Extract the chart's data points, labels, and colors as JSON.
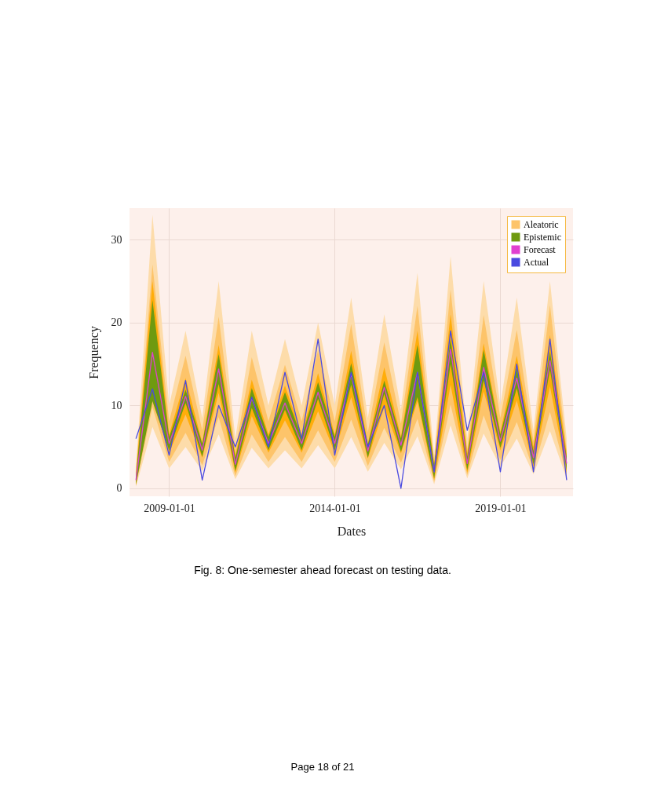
{
  "chart_data": {
    "type": "line",
    "xlabel": "Dates",
    "ylabel": "Frequency",
    "x": [
      "2008-01",
      "2008-07",
      "2009-01",
      "2009-07",
      "2010-01",
      "2010-07",
      "2011-01",
      "2011-07",
      "2012-01",
      "2012-07",
      "2013-01",
      "2013-07",
      "2014-01",
      "2014-07",
      "2015-01",
      "2015-07",
      "2016-01",
      "2016-07",
      "2017-01",
      "2017-07",
      "2018-01",
      "2018-07",
      "2019-01",
      "2019-07",
      "2020-01",
      "2020-07",
      "2021-01"
    ],
    "xlim": [
      "2007-10-22",
      "2021-03-12"
    ],
    "xticks": [
      "2009-01-01",
      "2014-01-01",
      "2019-01-01"
    ],
    "ylim": [
      -0.95,
      33.8
    ],
    "yticks": [
      0,
      10,
      20,
      30
    ],
    "grid": true,
    "legend": "top right",
    "marker": "none",
    "line_style": "solid",
    "series": [
      {
        "color": "#fddcaa",
        "values": [
          null,
          null,
          null,
          null,
          null,
          null,
          null,
          null,
          null,
          null,
          null,
          null,
          null,
          null,
          null,
          null,
          null,
          null,
          null,
          null,
          null,
          null,
          null,
          null,
          null,
          null,
          null
        ],
        "lower": [
          0.2,
          7.4,
          2.4,
          5.0,
          2.1,
          6.5,
          1.1,
          4.9,
          2.4,
          4.6,
          2.4,
          5.2,
          2.4,
          6.2,
          2.0,
          5.5,
          2.3,
          6.3,
          0.5,
          7.6,
          1.2,
          6.6,
          2.6,
          6.0,
          1.7,
          6.9,
          1.2
        ],
        "upper": [
          2.5,
          33,
          10,
          19,
          8.5,
          25,
          6,
          19,
          10,
          18,
          10,
          20,
          10,
          23,
          8.5,
          21,
          9.5,
          26,
          4,
          28,
          6,
          25,
          10,
          23,
          7,
          25,
          6
        ]
      },
      {
        "name": "Aleatoric",
        "color": "#fdc46a",
        "values": [
          null,
          null,
          null,
          null,
          null,
          null,
          null,
          null,
          null,
          null,
          null,
          null,
          null,
          null,
          null,
          null,
          null,
          null,
          null,
          null,
          null,
          null,
          null,
          null,
          null,
          null,
          null
        ],
        "lower": [
          0.3,
          9.8,
          3.2,
          6.7,
          2.8,
          8.6,
          1.5,
          6.5,
          3.2,
          6.2,
          3.2,
          7.0,
          3.2,
          8.3,
          2.7,
          7.3,
          3.1,
          8.4,
          0.8,
          10.1,
          1.6,
          8.8,
          3.4,
          8.0,
          2.2,
          9.2,
          1.6
        ],
        "upper": [
          2.2,
          27,
          8.1,
          16.0,
          7.0,
          20.7,
          4.6,
          15.8,
          8.1,
          14.9,
          8.1,
          16.7,
          8.1,
          19.8,
          6.8,
          17.6,
          7.8,
          22,
          3.3,
          24.0,
          4.7,
          20.9,
          8.5,
          19.1,
          5.7,
          22.1,
          4.7
        ]
      },
      {
        "color": "#ffad0a",
        "values": [
          null,
          null,
          null,
          null,
          null,
          null,
          null,
          null,
          null,
          null,
          null,
          null,
          null,
          null,
          null,
          null,
          null,
          null,
          null,
          null,
          null,
          null,
          null,
          null,
          null,
          null,
          null
        ],
        "lower": [
          0.4,
          11,
          4.3,
          8.9,
          3.7,
          11.5,
          1.9,
          8.7,
          4.3,
          8.2,
          4.3,
          9.3,
          4.3,
          11.0,
          3.6,
          9.8,
          4.2,
          10.5,
          1.0,
          12.5,
          1.9,
          11.7,
          4.6,
          10.6,
          2.6,
          12.3,
          1.9
        ],
        "upper": [
          1.8,
          25,
          6.5,
          13.3,
          5.5,
          17.3,
          4.0,
          13.1,
          6.5,
          12.4,
          6.5,
          13.9,
          6.5,
          16.6,
          5.4,
          14.6,
          6.2,
          19,
          3.0,
          21,
          4.2,
          17.5,
          6.8,
          16.0,
          5.0,
          18.5,
          4.2
        ]
      },
      {
        "name": "Epistemic",
        "color": "#6f9a10",
        "values": [
          null,
          null,
          null,
          null,
          null,
          null,
          null,
          null,
          null,
          null,
          null,
          null,
          null,
          null,
          null,
          null,
          null,
          null,
          null,
          null,
          null,
          null,
          null,
          null,
          null,
          null,
          null
        ],
        "lower": [
          0.5,
          10.5,
          4.6,
          10.3,
          3.8,
          12.6,
          2.1,
          9.7,
          4.6,
          9.5,
          4.6,
          10.8,
          4.6,
          12.5,
          3.7,
          11.4,
          4.4,
          11.0,
          1.2,
          15.0,
          2.2,
          13.0,
          4.9,
          12.1,
          2.9,
          14.3,
          2.2
        ],
        "upper": [
          1.5,
          22.7,
          6.2,
          11.9,
          5.4,
          16.2,
          3.7,
          12.1,
          6.2,
          11.6,
          6.2,
          12.8,
          6.2,
          15.1,
          5.3,
          13.0,
          6.0,
          17.3,
          2.8,
          18.0,
          3.8,
          16.7,
          6.5,
          14.5,
          4.5,
          16.5,
          3.8
        ]
      },
      {
        "type": "line",
        "name": "Forecast",
        "color": "#e040d0",
        "values": [
          1.0,
          16.4,
          5.4,
          11.1,
          4.6,
          14.4,
          2.9,
          10.9,
          5.4,
          10.3,
          5.4,
          11.6,
          5.4,
          13.8,
          4.5,
          12.2,
          5.2,
          14.0,
          2.0,
          16.8,
          3.0,
          14.6,
          5.7,
          13.3,
          3.7,
          15.4,
          3.0
        ]
      },
      {
        "type": "line",
        "name": "Actual",
        "color": "#4a4ae0",
        "values": [
          6,
          12,
          4,
          13,
          1,
          10,
          5,
          11,
          5,
          14,
          6,
          18,
          4,
          14,
          5,
          10,
          0,
          14,
          2,
          19,
          7,
          14,
          2,
          15,
          2,
          18,
          1
        ]
      }
    ],
    "annotations": [
      "Fig. 8: One-semester ahead forecast on testing data.",
      "Page 18 of 21"
    ]
  }
}
